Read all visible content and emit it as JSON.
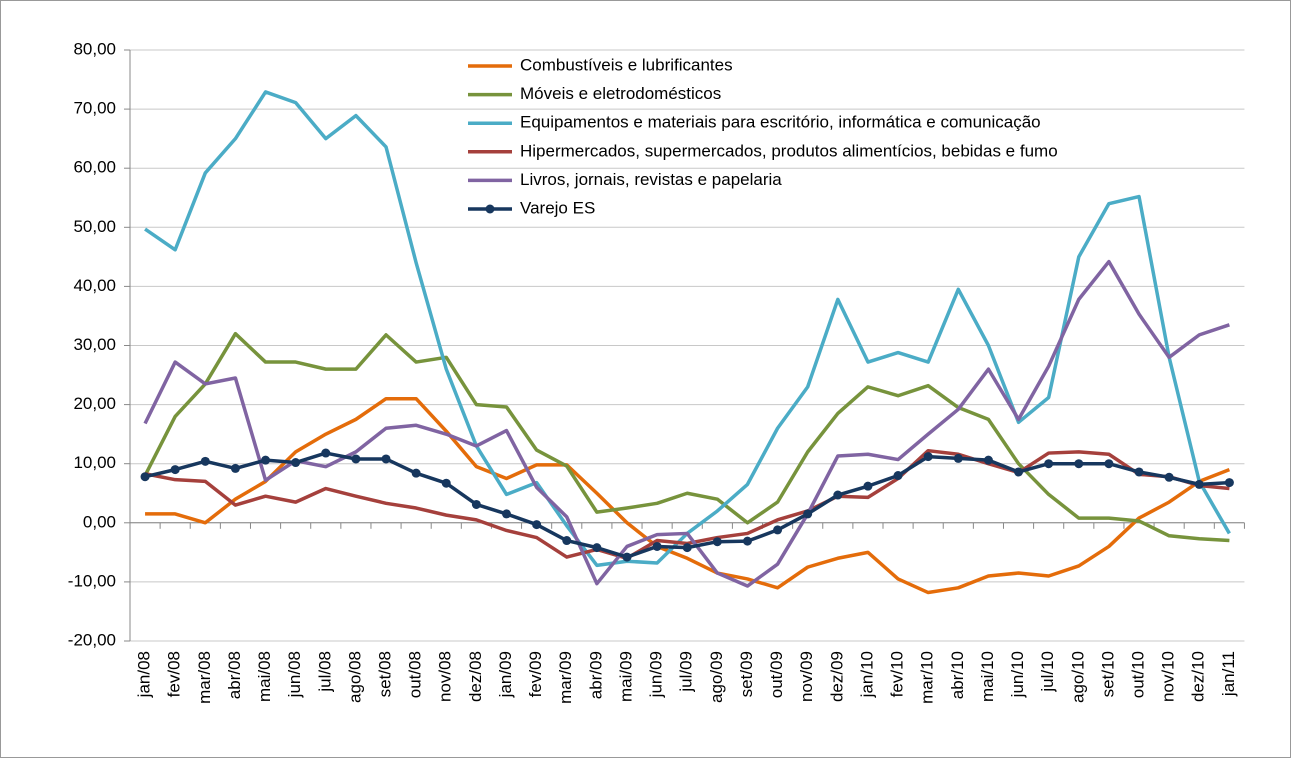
{
  "chart_data": {
    "type": "line",
    "categories": [
      "jan/08",
      "fev/08",
      "mar/08",
      "abr/08",
      "mai/08",
      "jun/08",
      "jul/08",
      "ago/08",
      "set/08",
      "out/08",
      "nov/08",
      "dez/08",
      "jan/09",
      "fev/09",
      "mar/09",
      "abr/09",
      "mai/09",
      "jun/09",
      "jul/09",
      "ago/09",
      "set/09",
      "out/09",
      "nov/09",
      "dez/09",
      "jan/10",
      "fev/10",
      "mar/10",
      "abr/10",
      "mai/10",
      "jun/10",
      "jul/10",
      "ago/10",
      "set/10",
      "out/10",
      "nov/10",
      "dez/10",
      "jan/11"
    ],
    "series": [
      {
        "name": "Combustíveis e lubrificantes",
        "color": "#e46c0a",
        "values": [
          1.5,
          1.5,
          0,
          4,
          7,
          12,
          15,
          17.5,
          21,
          21,
          15.5,
          9.5,
          7.5,
          9.8,
          9.8,
          5,
          0,
          -4,
          -6,
          -8.5,
          -9.5,
          -11,
          -7.5,
          -6,
          -5,
          -9.5,
          -11.8,
          -11,
          -9,
          -8.5,
          -9,
          -7.3,
          -4,
          0.8,
          3.5,
          7,
          9
        ]
      },
      {
        "name": "Móveis e eletrodomésticos",
        "color": "#77933c",
        "values": [
          8,
          18,
          23.5,
          32,
          27.2,
          27.2,
          26,
          26,
          31.8,
          27.2,
          28,
          20,
          19.6,
          12.3,
          9.6,
          1.8,
          2.5,
          3.3,
          5,
          4,
          0,
          3.5,
          12,
          18.5,
          23,
          21.5,
          23.2,
          19.5,
          17.5,
          10,
          4.8,
          0.8,
          0.8,
          0.3,
          -2.2,
          -2.7,
          -3
        ]
      },
      {
        "name": "Equipamentos e materiais para escritório, informática e comunicação",
        "color": "#4bacc6",
        "values": [
          49.7,
          46.2,
          59.2,
          65,
          72.9,
          71.1,
          65,
          68.9,
          63.6,
          44,
          26,
          13,
          4.8,
          6.8,
          -0.5,
          -7.2,
          -6.5,
          -6.8,
          -1.8,
          2,
          6.5,
          16,
          23,
          37.8,
          27.2,
          28.8,
          27.2,
          39.5,
          30,
          17,
          21.2,
          45,
          54,
          55.2,
          28,
          7,
          -1.8
        ]
      },
      {
        "name": "Hipermercados, supermercados, produtos alimentícios, bebidas e fumo",
        "color": "#a5403c",
        "values": [
          8.3,
          7.3,
          7,
          3,
          4.5,
          3.5,
          5.8,
          4.5,
          3.3,
          2.5,
          1.3,
          0.5,
          -1.3,
          -2.5,
          -5.8,
          -4.5,
          -6,
          -3,
          -3.5,
          -2.5,
          -1.8,
          0.5,
          2,
          4.5,
          4.3,
          7.5,
          12.2,
          11.6,
          10,
          8.5,
          11.8,
          12,
          11.6,
          8.2,
          7.8,
          6.3,
          5.8
        ]
      },
      {
        "name": "Livros, jornais, revistas e papelaria",
        "color": "#8064a2",
        "values": [
          16.8,
          27.2,
          23.5,
          24.5,
          7.2,
          10.5,
          9.5,
          12,
          16,
          16.5,
          15,
          13,
          15.6,
          6,
          1,
          -10.3,
          -4,
          -2,
          -1.8,
          -8.5,
          -10.7,
          -7,
          1.5,
          11.3,
          11.6,
          10.7,
          15,
          19.2,
          26,
          17.5,
          26.5,
          37.8,
          44.2,
          35.3,
          28,
          31.8,
          33.5
        ]
      },
      {
        "name": "Varejo ES",
        "color": "#17375e",
        "marker": true,
        "values": [
          7.8,
          9,
          10.4,
          9.2,
          10.6,
          10.2,
          11.8,
          10.8,
          10.8,
          8.4,
          6.7,
          3.1,
          1.5,
          -0.3,
          -3,
          -4.2,
          -5.8,
          -4,
          -4.2,
          -3.2,
          -3.1,
          -1.2,
          1.5,
          4.7,
          6.2,
          8,
          11.2,
          10.9,
          10.6,
          8.6,
          10,
          10,
          10,
          8.6,
          7.7,
          6.5,
          6.8
        ]
      }
    ],
    "ylim": [
      -20,
      80
    ],
    "yticks": [
      {
        "value": -20,
        "label": "-20,00"
      },
      {
        "value": -10,
        "label": "-10,00"
      },
      {
        "value": 0,
        "label": "0,00"
      },
      {
        "value": 10,
        "label": "10,00"
      },
      {
        "value": 20,
        "label": "20,00"
      },
      {
        "value": 30,
        "label": "30,00"
      },
      {
        "value": 40,
        "label": "40,00"
      },
      {
        "value": 50,
        "label": "50,00"
      },
      {
        "value": 60,
        "label": "60,00"
      },
      {
        "value": 70,
        "label": "70,00"
      },
      {
        "value": 80,
        "label": "80,00"
      }
    ],
    "grid": true
  }
}
